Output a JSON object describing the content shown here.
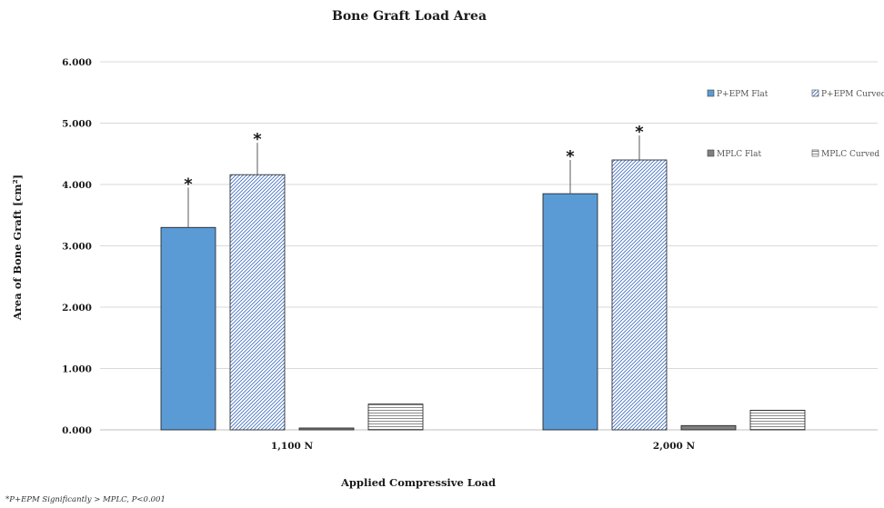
{
  "chart_data": {
    "type": "bar",
    "title": "Bone Graft Load Area",
    "xlabel": "Applied Compressive Load",
    "ylabel": "Area  of Bone Graft  [cm²]",
    "ylim": [
      0,
      6
    ],
    "y_ticks": [
      "0.000",
      "1.000",
      "2.000",
      "3.000",
      "4.000",
      "5.000",
      "6.000"
    ],
    "categories": [
      "1,100 N",
      "2,000 N"
    ],
    "grid": true,
    "legend_position": "top-right",
    "series": [
      {
        "name": "P+EPM Flat",
        "values": [
          3.3,
          3.85
        ],
        "errors": [
          0.65,
          0.55
        ],
        "significant": [
          true,
          true
        ],
        "fill": "solid",
        "color": "#5b9bd5"
      },
      {
        "name": "P+EPM Curved",
        "values": [
          4.16,
          4.4
        ],
        "errors": [
          0.52,
          0.4
        ],
        "significant": [
          true,
          true
        ],
        "fill": "diagonal-hatch",
        "color": "#4472c4"
      },
      {
        "name": "MPLC Flat",
        "values": [
          0.03,
          0.07
        ],
        "errors": [
          0,
          0
        ],
        "significant": [
          false,
          false
        ],
        "fill": "solid",
        "color": "#808080"
      },
      {
        "name": "MPLC Curved",
        "values": [
          0.42,
          0.32
        ],
        "errors": [
          0,
          0
        ],
        "significant": [
          false,
          false
        ],
        "fill": "horizontal-hatch",
        "color": "#808080"
      }
    ],
    "significance_marker": "*",
    "footnote": "*P+EPM Significantly > MPLC, P<0.001"
  }
}
